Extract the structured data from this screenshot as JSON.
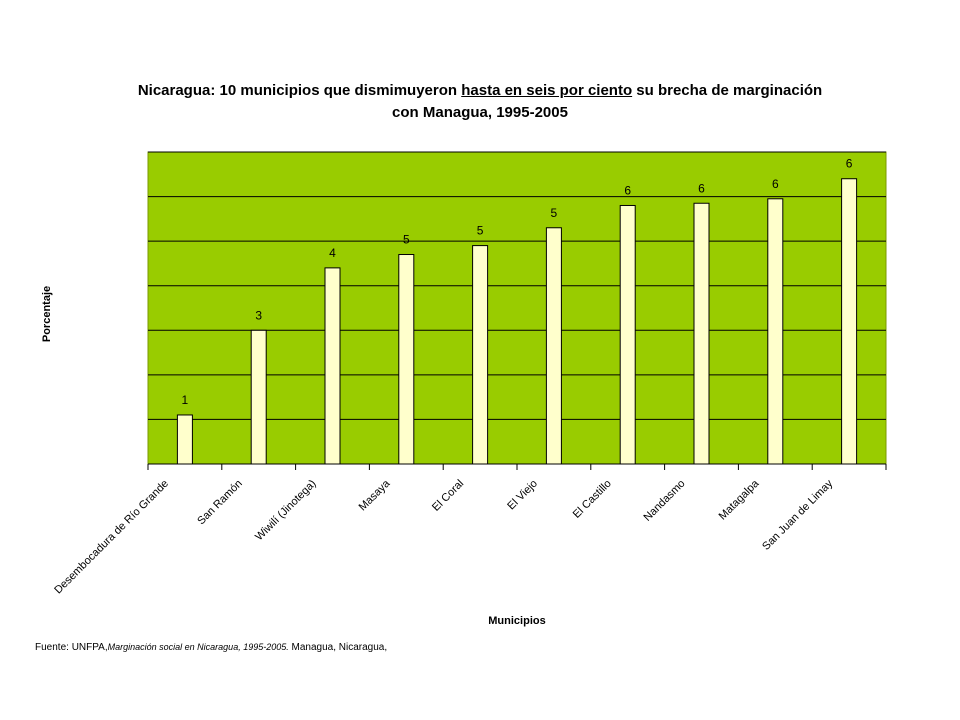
{
  "title": {
    "part1": "Nicaragua: 10 municipios que dismimuyeron ",
    "underlined": " hasta en seis por ciento",
    "part2": " su brecha de marginación",
    "line2": "con Managua, 1995-2005"
  },
  "source": {
    "prefix": "Fuente: UNFPA,",
    "italic": "Marginación social en Nicaragua, 1995-2005.",
    "suffix": " Managua, Nicaragua,"
  },
  "colors": {
    "plot_bg": "#99cc00",
    "bar_fill": "#ffffcc",
    "bar_stroke": "#000000",
    "gridline": "#000000"
  },
  "chart_data": {
    "type": "bar",
    "xlabel": "Municipios",
    "ylabel": "Porcentaje",
    "ylim": [
      0,
      7
    ],
    "grid": true,
    "categories": [
      "Desembocadura de Río Grande",
      "San Ramón",
      "Wiwilí (Jinotega)",
      "Masaya",
      "El Coral",
      "El Viejo",
      "El Castillo",
      "Nandasmo",
      "Matagalpa",
      "San Juan de Limay"
    ],
    "values": [
      1.1,
      3.0,
      4.4,
      4.7,
      4.9,
      5.3,
      5.8,
      5.85,
      5.95,
      6.4
    ],
    "data_labels": [
      "1",
      "3",
      "4",
      "5",
      "5",
      "5",
      "6",
      "6",
      "6",
      "6"
    ]
  }
}
